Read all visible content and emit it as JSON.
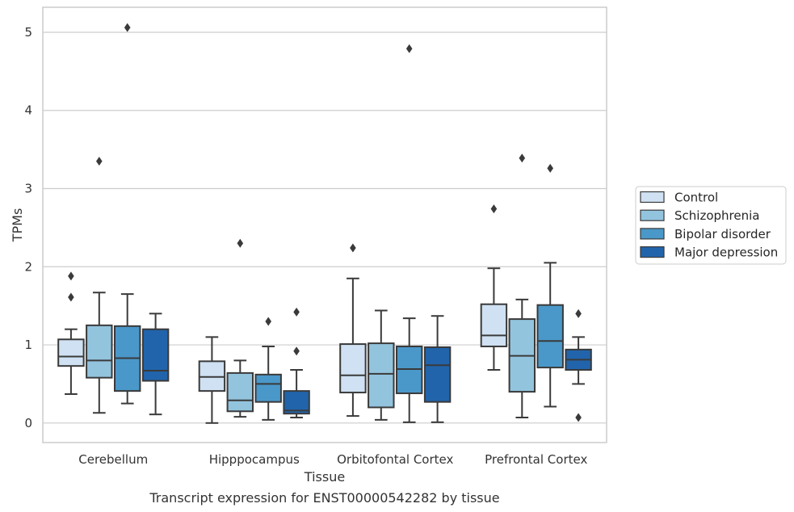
{
  "chart_data": {
    "type": "box",
    "caption": "Transcript expression for ENST00000542282 by tissue",
    "xlabel": "Tissue",
    "ylabel": "TPMs",
    "ylim": [
      -0.25,
      5.32
    ],
    "yticks": [
      0,
      1,
      2,
      3,
      4,
      5
    ],
    "grid": "horizontal",
    "legend_position": "right",
    "categories": [
      "Cerebellum",
      "Hipppocampus",
      "Orbitofontal Cortex",
      "Prefrontal Cortex"
    ],
    "series": [
      {
        "name": "Control",
        "color": "#cfe1f2",
        "boxes": [
          {
            "whisker_low": 0.37,
            "q1": 0.73,
            "median": 0.85,
            "q3": 1.07,
            "whisker_high": 1.2,
            "outliers": [
              1.88,
              1.61
            ]
          },
          {
            "whisker_low": 0.0,
            "q1": 0.41,
            "median": 0.59,
            "q3": 0.79,
            "whisker_high": 1.1,
            "outliers": []
          },
          {
            "whisker_low": 0.09,
            "q1": 0.39,
            "median": 0.61,
            "q3": 1.01,
            "whisker_high": 1.85,
            "outliers": [
              2.24
            ]
          },
          {
            "whisker_low": 0.68,
            "q1": 0.98,
            "median": 1.12,
            "q3": 1.52,
            "whisker_high": 1.98,
            "outliers": [
              2.74
            ]
          }
        ]
      },
      {
        "name": "Schizophrenia",
        "color": "#93c4de",
        "boxes": [
          {
            "whisker_low": 0.13,
            "q1": 0.58,
            "median": 0.8,
            "q3": 1.25,
            "whisker_high": 1.67,
            "outliers": [
              3.35
            ]
          },
          {
            "whisker_low": 0.08,
            "q1": 0.15,
            "median": 0.29,
            "q3": 0.64,
            "whisker_high": 0.8,
            "outliers": [
              2.3
            ]
          },
          {
            "whisker_low": 0.04,
            "q1": 0.2,
            "median": 0.63,
            "q3": 1.02,
            "whisker_high": 1.44,
            "outliers": []
          },
          {
            "whisker_low": 0.07,
            "q1": 0.4,
            "median": 0.86,
            "q3": 1.33,
            "whisker_high": 1.58,
            "outliers": [
              3.39
            ]
          }
        ]
      },
      {
        "name": "Bipolar disorder",
        "color": "#4a98c9",
        "boxes": [
          {
            "whisker_low": 0.25,
            "q1": 0.41,
            "median": 0.83,
            "q3": 1.24,
            "whisker_high": 1.65,
            "outliers": [
              5.06
            ]
          },
          {
            "whisker_low": 0.04,
            "q1": 0.27,
            "median": 0.5,
            "q3": 0.62,
            "whisker_high": 0.98,
            "outliers": [
              1.3
            ]
          },
          {
            "whisker_low": 0.01,
            "q1": 0.38,
            "median": 0.69,
            "q3": 0.98,
            "whisker_high": 1.34,
            "outliers": [
              4.79
            ]
          },
          {
            "whisker_low": 0.21,
            "q1": 0.71,
            "median": 1.05,
            "q3": 1.51,
            "whisker_high": 2.05,
            "outliers": [
              3.26
            ]
          }
        ]
      },
      {
        "name": "Major depression",
        "color": "#2164ab",
        "boxes": [
          {
            "whisker_low": 0.11,
            "q1": 0.54,
            "median": 0.67,
            "q3": 1.2,
            "whisker_high": 1.4,
            "outliers": []
          },
          {
            "whisker_low": 0.07,
            "q1": 0.12,
            "median": 0.16,
            "q3": 0.41,
            "whisker_high": 0.68,
            "outliers": [
              1.42,
              0.92
            ]
          },
          {
            "whisker_low": 0.01,
            "q1": 0.27,
            "median": 0.74,
            "q3": 0.97,
            "whisker_high": 1.37,
            "outliers": []
          },
          {
            "whisker_low": 0.5,
            "q1": 0.68,
            "median": 0.81,
            "q3": 0.94,
            "whisker_high": 1.1,
            "outliers": [
              1.4,
              0.07
            ]
          }
        ]
      }
    ]
  }
}
